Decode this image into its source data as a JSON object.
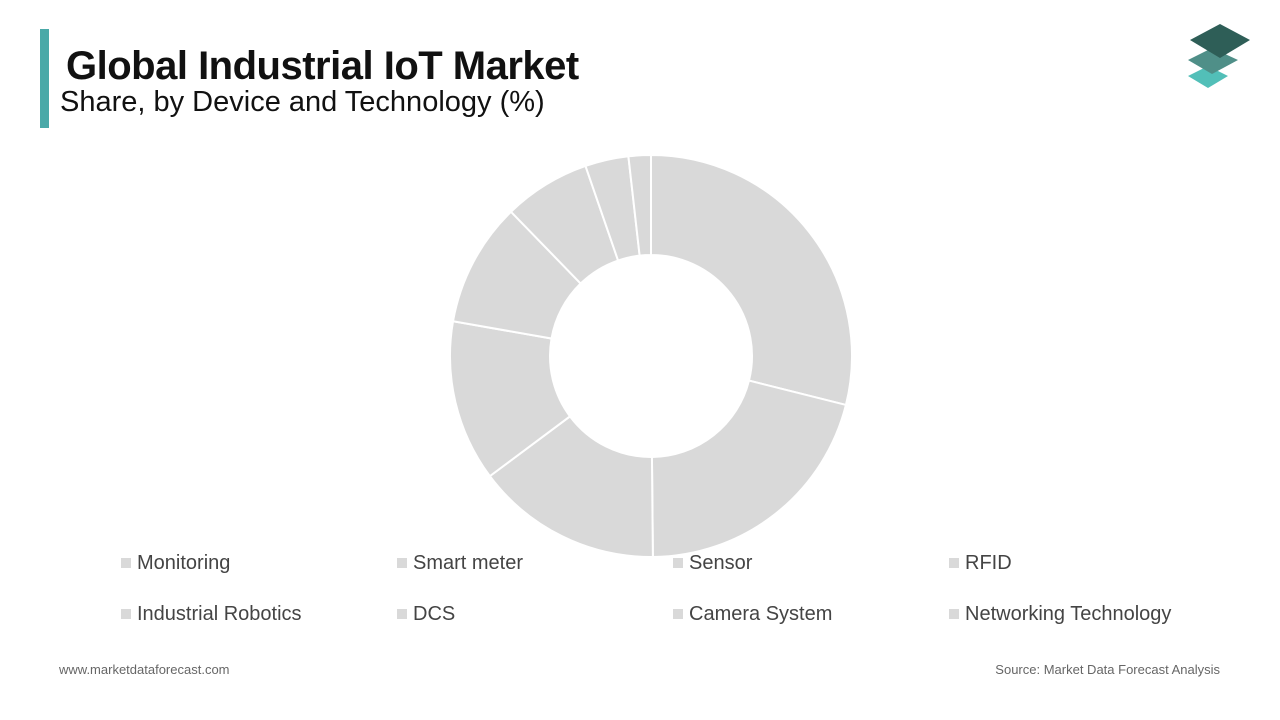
{
  "header": {
    "title": "Global Industrial IoT Market",
    "subtitle": "Share, by Device and Technology (%)"
  },
  "colors": {
    "accent": "#4aa9a8",
    "slice": "#d9d9d9",
    "slice_border": "#ffffff",
    "logo_top": "#2e5e57",
    "logo_mid": "#4f8f88",
    "logo_bottom": "#52bfb8"
  },
  "logo": {
    "icon": "stacked-layers-icon"
  },
  "chart_data": {
    "type": "pie",
    "donut": true,
    "labels": [
      "Monitoring",
      "Smart meter",
      "Sensor",
      "RFID",
      "Industrial Robotics",
      "DCS",
      "Camera System",
      "Networking Technology"
    ],
    "values": [
      29,
      21,
      15,
      13,
      10,
      7,
      3.5,
      1.8
    ],
    "legend_position": "bottom"
  },
  "footer": {
    "website": "www.marketdataforecast.com",
    "source": "Source: Market Data Forecast Analysis"
  }
}
